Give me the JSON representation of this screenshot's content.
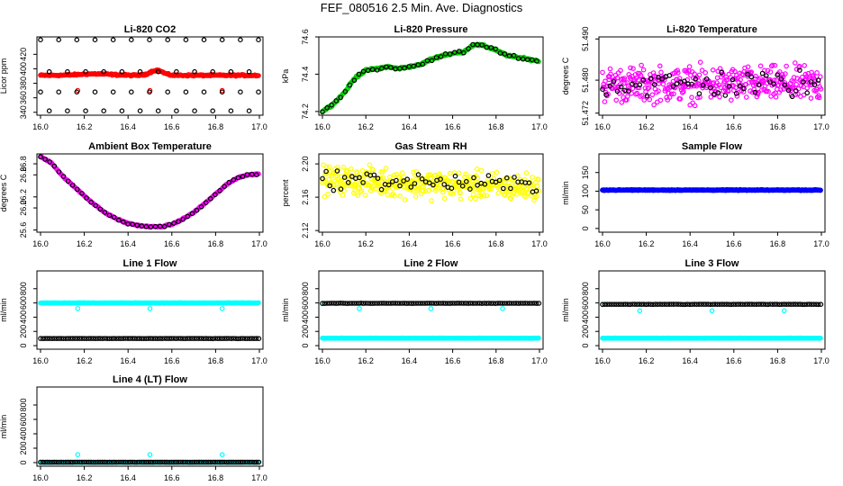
{
  "title": "FEF_080516  2.5 Min. Ave. Diagnostics",
  "colors": {
    "black": "#000000",
    "red": "#ff0000",
    "green": "#00cc00",
    "magenta": "#ff00ff",
    "yellow": "#ffff00",
    "blue": "#0000ff",
    "cyan": "#00ffff"
  },
  "chart_data": [
    {
      "type": "scatter",
      "title": "Li-820 CO2",
      "ylabel": "Licor ppm",
      "xlim": [
        16.0,
        17.0
      ],
      "ylim": [
        336,
        444
      ],
      "xticks": [
        "16.0",
        "16.2",
        "16.4",
        "16.6",
        "16.8",
        "17.0"
      ],
      "yticks": [
        {
          "v": 340,
          "label": "340"
        },
        {
          "v": 360,
          "label": "360"
        },
        {
          "v": 380,
          "label": "380"
        },
        {
          "v": 400,
          "label": "400"
        },
        {
          "v": 420,
          "label": "420"
        }
      ],
      "series": [
        {
          "color": "red",
          "kind": "band",
          "base": 391,
          "noise": 1.5,
          "bumps": [
            {
              "c": 16.53,
              "w": 0.04,
              "h": 7
            },
            {
              "c": 16.25,
              "w": 0.1,
              "h": 2
            }
          ],
          "outliers": [
            {
              "x": 16.17,
              "y": 370
            },
            {
              "x": 16.5,
              "y": 370
            },
            {
              "x": 16.83,
              "y": 370
            }
          ]
        },
        {
          "color": "black",
          "kind": "levels",
          "levels": [
            440,
            396,
            368,
            342
          ],
          "step": 0.083
        }
      ]
    },
    {
      "type": "scatter",
      "title": "Li-820 Pressure",
      "ylabel": "kPa",
      "xlim": [
        16.0,
        17.0
      ],
      "ylim": [
        74.18,
        74.6
      ],
      "xticks": [
        "16.0",
        "16.2",
        "16.4",
        "16.6",
        "16.8",
        "17.0"
      ],
      "yticks": [
        {
          "v": 74.2,
          "label": "74.2"
        },
        {
          "v": 74.4,
          "label": "74.4"
        },
        {
          "v": 74.6,
          "label": "74.6"
        }
      ],
      "series": [
        {
          "color": "green",
          "kind": "curve",
          "noise": 0.008,
          "points": [
            [
              16.0,
              74.2
            ],
            [
              16.05,
              74.24
            ],
            [
              16.1,
              74.3
            ],
            [
              16.15,
              74.38
            ],
            [
              16.2,
              74.42
            ],
            [
              16.3,
              74.44
            ],
            [
              16.35,
              74.43
            ],
            [
              16.4,
              74.44
            ],
            [
              16.45,
              74.45
            ],
            [
              16.5,
              74.48
            ],
            [
              16.55,
              74.5
            ],
            [
              16.6,
              74.51
            ],
            [
              16.65,
              74.52
            ],
            [
              16.7,
              74.56
            ],
            [
              16.75,
              74.55
            ],
            [
              16.8,
              74.53
            ],
            [
              16.85,
              74.5
            ],
            [
              16.9,
              74.49
            ],
            [
              16.95,
              74.48
            ],
            [
              17.0,
              74.47
            ]
          ]
        },
        {
          "color": "black",
          "kind": "curve-sparse",
          "noise": 0.012,
          "ref": 0
        }
      ]
    },
    {
      "type": "scatter",
      "title": "Li-820 Temperature",
      "ylabel": "degrees C",
      "xlim": [
        16.0,
        17.0
      ],
      "ylim": [
        51.4715,
        51.4905
      ],
      "xticks": [
        "16.0",
        "16.2",
        "16.4",
        "16.6",
        "16.8",
        "17.0"
      ],
      "yticks": [
        {
          "v": 51.472,
          "label": "51.472"
        },
        {
          "v": 51.48,
          "label": "51.480"
        },
        {
          "v": 51.49,
          "label": "51.490"
        }
      ],
      "series": [
        {
          "color": "magenta",
          "kind": "cloud",
          "center": 51.479,
          "spread": 0.0062
        },
        {
          "color": "black",
          "kind": "cloud-sparse",
          "center": 51.479,
          "spread": 0.005
        }
      ]
    },
    {
      "type": "scatter",
      "title": "Ambient Box Temperature",
      "ylabel": "degrees C",
      "xlim": [
        16.0,
        17.0
      ],
      "ylim": [
        25.56,
        26.98
      ],
      "xticks": [
        "16.0",
        "16.2",
        "16.4",
        "16.6",
        "16.8",
        "17.0"
      ],
      "yticks": [
        {
          "v": 25.6,
          "label": "25.6"
        },
        {
          "v": 26.0,
          "label": "26.0"
        },
        {
          "v": 26.2,
          "label": "26.2"
        },
        {
          "v": 26.6,
          "label": "26.6"
        },
        {
          "v": 26.8,
          "label": "26.8"
        }
      ],
      "series": [
        {
          "color": "magenta",
          "kind": "curve",
          "noise": 0.015,
          "points": [
            [
              16.0,
              26.93
            ],
            [
              16.05,
              26.82
            ],
            [
              16.1,
              26.58
            ],
            [
              16.15,
              26.4
            ],
            [
              16.2,
              26.22
            ],
            [
              16.25,
              26.05
            ],
            [
              16.3,
              25.9
            ],
            [
              16.35,
              25.8
            ],
            [
              16.4,
              25.72
            ],
            [
              16.45,
              25.68
            ],
            [
              16.5,
              25.66
            ],
            [
              16.55,
              25.66
            ],
            [
              16.6,
              25.7
            ],
            [
              16.65,
              25.8
            ],
            [
              16.7,
              25.92
            ],
            [
              16.75,
              26.08
            ],
            [
              16.8,
              26.25
            ],
            [
              16.85,
              26.42
            ],
            [
              16.9,
              26.55
            ],
            [
              16.95,
              26.6
            ],
            [
              17.0,
              26.62
            ]
          ]
        },
        {
          "color": "black",
          "kind": "curve-sparse",
          "noise": 0.02,
          "ref": 0
        }
      ]
    },
    {
      "type": "scatter",
      "title": "Gas Stream RH",
      "ylabel": "percent",
      "xlim": [
        16.0,
        17.0
      ],
      "ylim": [
        2.118,
        2.212
      ],
      "xticks": [
        "16.0",
        "16.2",
        "16.4",
        "16.6",
        "16.8",
        "17.0"
      ],
      "yticks": [
        {
          "v": 2.12,
          "label": "2.12"
        },
        {
          "v": 2.16,
          "label": "2.16"
        },
        {
          "v": 2.2,
          "label": "2.20"
        }
      ],
      "series": [
        {
          "color": "yellow",
          "kind": "cloud",
          "center": 2.176,
          "spread": 0.024,
          "trend": -0.01
        },
        {
          "color": "black",
          "kind": "cloud-sparse",
          "center": 2.178,
          "spread": 0.016,
          "trend": -0.008
        }
      ]
    },
    {
      "type": "scatter",
      "title": "Sample Flow",
      "ylabel": "ml/min",
      "xlim": [
        16.0,
        17.0
      ],
      "ylim": [
        -10,
        200
      ],
      "xticks": [
        "16.0",
        "16.2",
        "16.4",
        "16.6",
        "16.8",
        "17.0"
      ],
      "yticks": [
        {
          "v": 0,
          "label": "0"
        },
        {
          "v": 50,
          "label": "50"
        },
        {
          "v": 100,
          "label": "100"
        },
        {
          "v": 150,
          "label": "150"
        }
      ],
      "series": [
        {
          "color": "black",
          "kind": "flat",
          "value": 103,
          "noise": 1.5
        },
        {
          "color": "blue",
          "kind": "flat",
          "value": 103,
          "noise": 1
        }
      ]
    },
    {
      "type": "scatter",
      "title": "Line 1 Flow",
      "ylabel": "ml/min",
      "xlim": [
        16.0,
        17.0
      ],
      "ylim": [
        -50,
        1050
      ],
      "xticks": [
        "16.0",
        "16.2",
        "16.4",
        "16.6",
        "16.8",
        "17.0"
      ],
      "yticks": [
        {
          "v": 0,
          "label": "0"
        },
        {
          "v": 200,
          "label": "200"
        },
        {
          "v": 400,
          "label": "400"
        },
        {
          "v": 600,
          "label": "600"
        },
        {
          "v": 800,
          "label": "800"
        }
      ],
      "series": [
        {
          "color": "cyan",
          "kind": "flat",
          "value": 600,
          "noise": 4,
          "dips": [
            {
              "x": 16.17,
              "y": 520
            },
            {
              "x": 16.5,
              "y": 520
            },
            {
              "x": 16.83,
              "y": 520
            }
          ]
        },
        {
          "color": "black",
          "kind": "flat-sparse",
          "value": 100,
          "noise": 2
        }
      ]
    },
    {
      "type": "scatter",
      "title": "Line 2 Flow",
      "ylabel": "ml/min",
      "xlim": [
        16.0,
        17.0
      ],
      "ylim": [
        -50,
        1050
      ],
      "xticks": [
        "16.0",
        "16.2",
        "16.4",
        "16.6",
        "16.8",
        "17.0"
      ],
      "yticks": [
        {
          "v": 0,
          "label": "0"
        },
        {
          "v": 200,
          "label": "200"
        },
        {
          "v": 400,
          "label": "400"
        },
        {
          "v": 600,
          "label": "600"
        },
        {
          "v": 800,
          "label": "800"
        }
      ],
      "series": [
        {
          "color": "cyan",
          "kind": "flat",
          "value": 105,
          "noise": 2,
          "dips": [
            {
              "x": 16.0,
              "y": 590
            },
            {
              "x": 16.17,
              "y": 520
            },
            {
              "x": 16.5,
              "y": 520
            },
            {
              "x": 16.83,
              "y": 520
            }
          ]
        },
        {
          "color": "black",
          "kind": "flat-sparse",
          "value": 595,
          "noise": 3
        }
      ]
    },
    {
      "type": "scatter",
      "title": "Line 3 Flow",
      "ylabel": "ml/min",
      "xlim": [
        16.0,
        17.0
      ],
      "ylim": [
        -50,
        1050
      ],
      "xticks": [
        "16.0",
        "16.2",
        "16.4",
        "16.6",
        "16.8",
        "17.0"
      ],
      "yticks": [
        {
          "v": 0,
          "label": "0"
        },
        {
          "v": 200,
          "label": "200"
        },
        {
          "v": 400,
          "label": "400"
        },
        {
          "v": 600,
          "label": "600"
        },
        {
          "v": 800,
          "label": "800"
        }
      ],
      "series": [
        {
          "color": "cyan",
          "kind": "flat",
          "value": 105,
          "noise": 2,
          "dips": [
            {
              "x": 16.0,
              "y": 580
            },
            {
              "x": 16.17,
              "y": 490
            },
            {
              "x": 16.5,
              "y": 490
            },
            {
              "x": 16.83,
              "y": 490
            }
          ]
        },
        {
          "color": "black",
          "kind": "flat-sparse",
          "value": 580,
          "noise": 3
        }
      ]
    },
    {
      "type": "scatter",
      "title": "Line 4 (LT) Flow",
      "ylabel": "ml/min",
      "xlim": [
        16.0,
        17.0
      ],
      "ylim": [
        -50,
        1050
      ],
      "xticks": [
        "16.0",
        "16.2",
        "16.4",
        "16.6",
        "16.8",
        "17.0"
      ],
      "yticks": [
        {
          "v": 0,
          "label": "0"
        },
        {
          "v": 200,
          "label": "200"
        },
        {
          "v": 400,
          "label": "400"
        },
        {
          "v": 600,
          "label": "600"
        },
        {
          "v": 800,
          "label": "800"
        }
      ],
      "series": [
        {
          "color": "cyan",
          "kind": "flat",
          "value": 5,
          "noise": 2,
          "dips": [
            {
              "x": 16.17,
              "y": 110
            },
            {
              "x": 16.5,
              "y": 110
            },
            {
              "x": 16.83,
              "y": 110
            }
          ]
        },
        {
          "color": "black",
          "kind": "flat-sparse",
          "value": 5,
          "noise": 2
        }
      ]
    }
  ]
}
